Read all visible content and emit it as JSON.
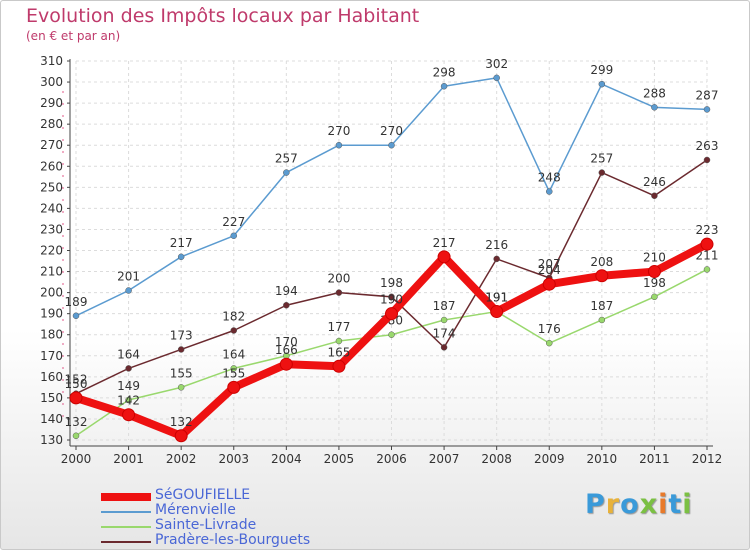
{
  "title": "Evolution des Impôts locaux par Habitant",
  "subtitle": "(en € et par an)",
  "logo": {
    "text": "Proxiti",
    "letters": [
      {
        "ch": "P",
        "color": "#3a9ad9"
      },
      {
        "ch": "r",
        "color": "#e8b23a"
      },
      {
        "ch": "o",
        "color": "#3a9ad9"
      },
      {
        "ch": "x",
        "color": "#7bc043"
      },
      {
        "ch": "i",
        "color": "#e87a2a"
      },
      {
        "ch": "t",
        "color": "#3a9ad9"
      },
      {
        "ch": "i",
        "color": "#7bc043"
      }
    ]
  },
  "chart_data": {
    "type": "line",
    "title": "Evolution des Impôts locaux par Habitant",
    "subtitle": "(en € et par an)",
    "x": [
      "2000",
      "2001",
      "2002",
      "2003",
      "2004",
      "2005",
      "2006",
      "2007",
      "2008",
      "2009",
      "2010",
      "2011",
      "2012"
    ],
    "ylim": [
      130,
      310
    ],
    "yticks": [
      130,
      140,
      150,
      160,
      170,
      180,
      190,
      200,
      210,
      220,
      230,
      240,
      250,
      260,
      270,
      280,
      290,
      300,
      310
    ],
    "grid": true,
    "legend_position": "bottom-left",
    "series": [
      {
        "name": "Mérenvielle",
        "color": "#5b9bd0",
        "values": [
          189,
          201,
          217,
          227,
          257,
          270,
          270,
          298,
          302,
          248,
          299,
          288,
          287
        ]
      },
      {
        "name": "Sainte-Livrade",
        "color": "#99d86d",
        "values": [
          132,
          149,
          155,
          164,
          170,
          177,
          180,
          187,
          191,
          176,
          187,
          198,
          211
        ]
      },
      {
        "name": "Pradère-les-Bourguets",
        "color": "#6b2a2f",
        "values": [
          152,
          164,
          173,
          182,
          194,
          200,
          198,
          174,
          216,
          207,
          257,
          246,
          263
        ]
      },
      {
        "name": "SéGOUFIELLE",
        "color": "#ee1111",
        "values": [
          150,
          142,
          132,
          155,
          166,
          165,
          190,
          217,
          191,
          204,
          208,
          210,
          223
        ]
      }
    ]
  }
}
